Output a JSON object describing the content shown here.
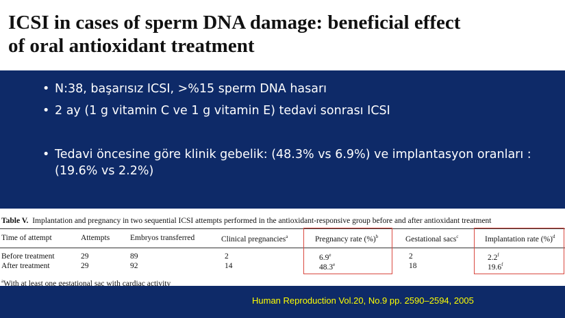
{
  "title": {
    "lines": [
      "ICSI in cases of sperm DNA damage: beneficial effect",
      "of oral antioxidant treatment"
    ]
  },
  "bullets": [
    "N:38, başarısız ICSI, >%15 sperm DNA hasarı",
    "2 ay (1 g vitamin C ve  1 g vitamin E) tedavi sonrası ICSI",
    "Tedavi öncesine göre klinik gebelik: (48.3% vs 6.9%) ve implantasyon oranları :(19.6% vs 2.2%)"
  ],
  "table": {
    "label": "Table V.",
    "caption": "Implantation and pregnancy in two sequential ICSI attempts performed in the antioxidant-responsive group before and after antioxidant treatment",
    "headers": [
      {
        "text": "Time of attempt"
      },
      {
        "text": "Attempts"
      },
      {
        "text": "Embryos transferred"
      },
      {
        "text": "Clinical pregnancies",
        "sup": "a"
      },
      {
        "text": "Pregnancy rate (%)",
        "sup": "b"
      },
      {
        "text": "Gestational sacs",
        "sup": "c"
      },
      {
        "text": "Implantation rate (%)",
        "sup": "d"
      }
    ],
    "rows": [
      [
        {
          "text": "Before treatment"
        },
        {
          "text": "29"
        },
        {
          "text": "89"
        },
        {
          "text": "2"
        },
        {
          "text": "6.9",
          "sup": "e"
        },
        {
          "text": "2"
        },
        {
          "text": "2.2",
          "sup": "f"
        }
      ],
      [
        {
          "text": "After treatment"
        },
        {
          "text": "29"
        },
        {
          "text": "92"
        },
        {
          "text": "14"
        },
        {
          "text": "48.3",
          "sup": "e"
        },
        {
          "text": "18"
        },
        {
          "text": "19.6",
          "sup": "f"
        }
      ]
    ],
    "footnote": {
      "sup": "a",
      "text": "With at least one gestational sac with cardiac activity"
    }
  },
  "citation": "Human Reproduction Vol.20, No.9 pp. 2590–2594, 2005"
}
